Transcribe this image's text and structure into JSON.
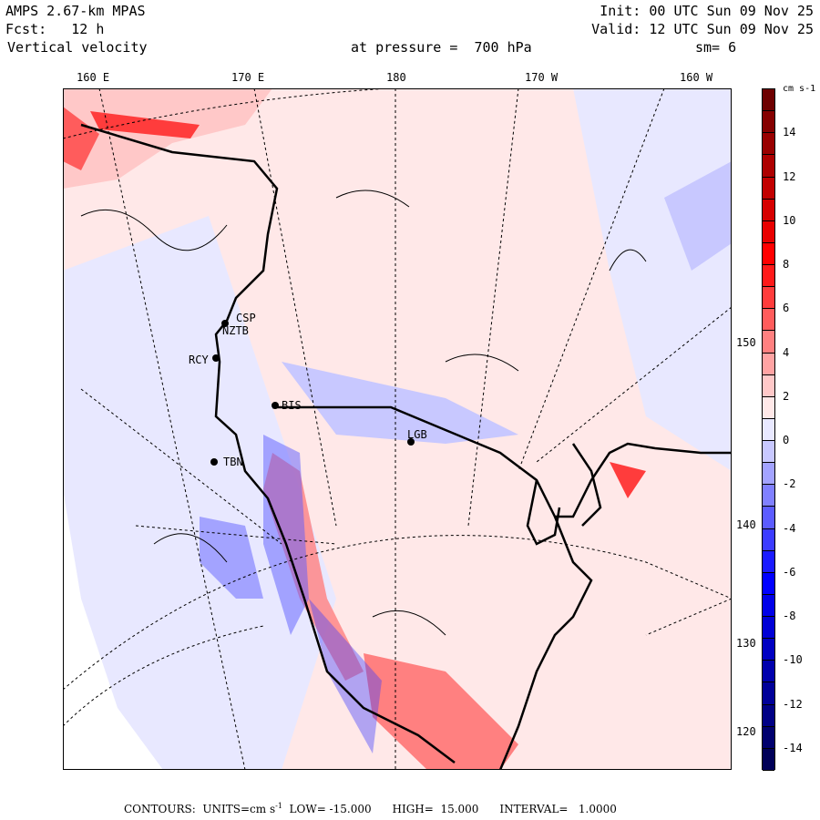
{
  "header": {
    "model": "AMPS 2.67-km MPAS",
    "forecast": "Fcst:   12 h",
    "field": "Vertical velocity",
    "level": "at pressure =  700 hPa",
    "smoothing": "sm= 6",
    "init": "Init: 00 UTC Sun 09 Nov 25",
    "valid": "Valid: 12 UTC Sun 09 Nov 25"
  },
  "longitude_labels": [
    "160 E",
    "170 E",
    "180",
    "170 W",
    "160 W"
  ],
  "latitude_labels": [
    "150 W",
    "140 W",
    "130 W",
    "120 W"
  ],
  "stations": [
    "CSP",
    "NZTB",
    "RCY",
    "BIS",
    "LGB",
    "TBN"
  ],
  "colorbar": {
    "units": "cm s-1",
    "labels": [
      "14",
      "12",
      "10",
      "8",
      "6",
      "4",
      "2",
      "0",
      "-2",
      "-4",
      "-6",
      "-8",
      "-10",
      "-12",
      "-14"
    ],
    "colors": [
      "#6e0000",
      "#850000",
      "#990000",
      "#ad0000",
      "#c20000",
      "#d60000",
      "#e80000",
      "#ff0000",
      "#ff1a1a",
      "#ff3c3c",
      "#ff5c5c",
      "#ff8080",
      "#ffa3a3",
      "#ffc8c8",
      "#ffe8e8",
      "#e8e8ff",
      "#c8c8ff",
      "#a3a3ff",
      "#8080ff",
      "#5c5cff",
      "#3c3cff",
      "#1a1aff",
      "#0000ff",
      "#0000e8",
      "#0000d6",
      "#0000c2",
      "#0000ad",
      "#000099",
      "#000085",
      "#00006e",
      "#000058"
    ]
  },
  "footer": {
    "contours": "CONTOURS:  UNITS=cm s",
    "exp": "-1",
    "low": "LOW= -15.000",
    "high": "HIGH=  15.000",
    "interval": "INTERVAL=   1.0000"
  }
}
